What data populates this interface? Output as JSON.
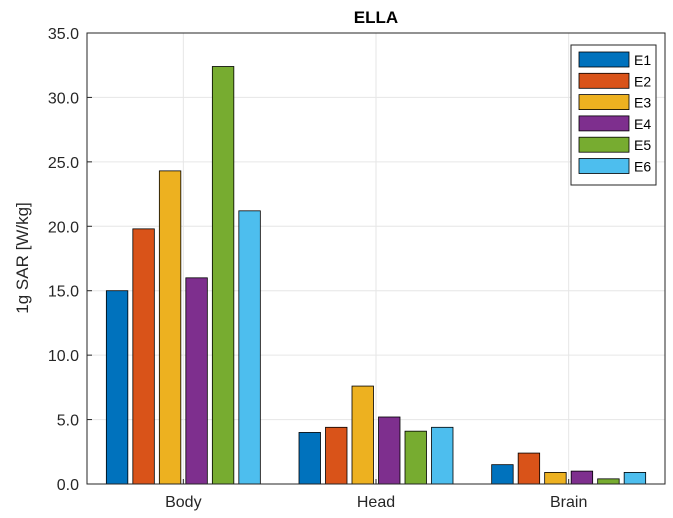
{
  "chart_data": {
    "type": "bar",
    "title": "ELLA",
    "xlabel": "",
    "ylabel": "1g SAR [W/kg]",
    "categories": [
      "Body",
      "Head",
      "Brain"
    ],
    "ylim": [
      0,
      35
    ],
    "yticks": [
      "0.0",
      "5.0",
      "10.0",
      "15.0",
      "20.0",
      "25.0",
      "30.0",
      "35.0"
    ],
    "grid": true,
    "legend_position": "top-right",
    "series": [
      {
        "name": "E1",
        "color": "#0072BD",
        "values": [
          15.0,
          4.0,
          1.5
        ]
      },
      {
        "name": "E2",
        "color": "#D95319",
        "values": [
          19.8,
          4.4,
          2.4
        ]
      },
      {
        "name": "E3",
        "color": "#EDB120",
        "values": [
          24.3,
          7.6,
          0.9
        ]
      },
      {
        "name": "E4",
        "color": "#7E2F8E",
        "values": [
          16.0,
          5.2,
          1.0
        ]
      },
      {
        "name": "E5",
        "color": "#77AC30",
        "values": [
          32.4,
          4.1,
          0.4
        ]
      },
      {
        "name": "E6",
        "color": "#4DBEEE",
        "values": [
          21.2,
          4.4,
          0.9
        ]
      }
    ]
  }
}
